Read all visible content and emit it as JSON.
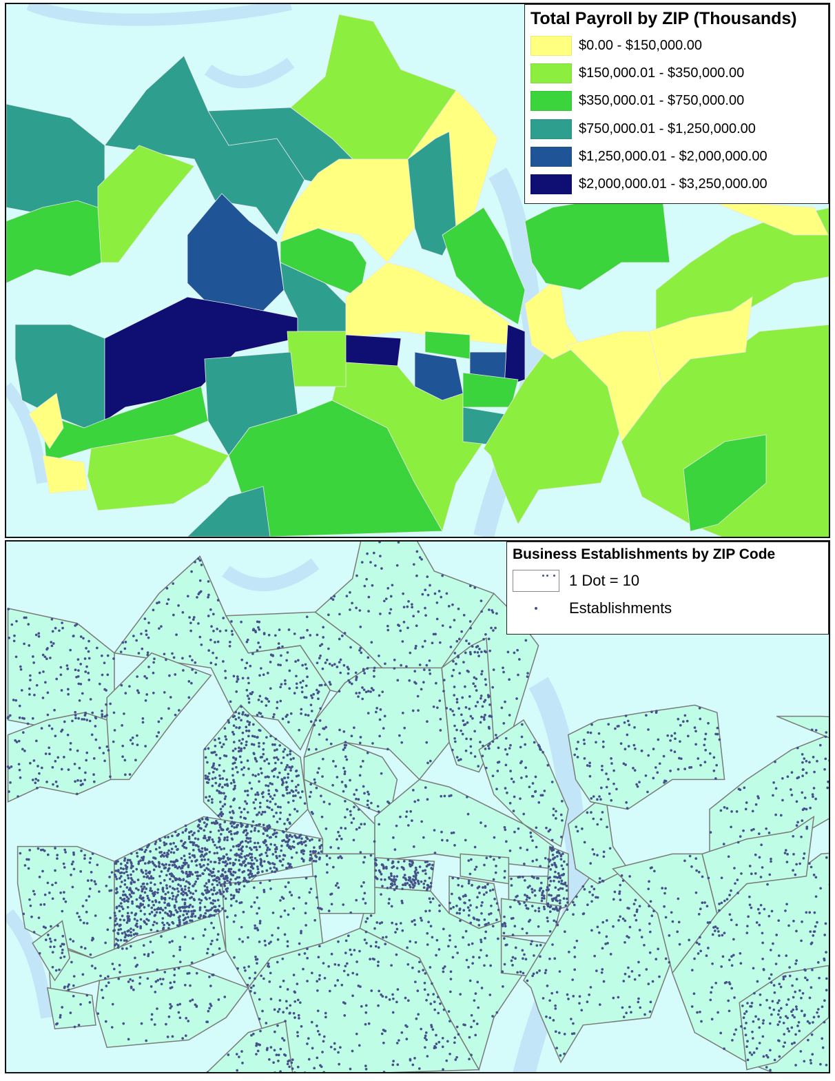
{
  "payroll_map": {
    "legend_title": "Total Payroll by ZIP (Thousands)",
    "classes": [
      {
        "label": "$0.00 - $150,000.00",
        "color": "#ffff80"
      },
      {
        "label": "$150,000.01 - $350,000.00",
        "color": "#8cee3f"
      },
      {
        "label": "$350,000.01 - $750,000.00",
        "color": "#3cd43c"
      },
      {
        "label": "$750,000.01 - $1,250,000.00",
        "color": "#2e9e8e"
      },
      {
        "label": "$1,250,000.01 - $2,000,000.00",
        "color": "#1f5596"
      },
      {
        "label": "$2,000,000.01 - $3,250,000.00",
        "color": "#0e0e73"
      }
    ],
    "water_color": "#d6fbfb",
    "river_color": "#c2e6f8"
  },
  "establishments_map": {
    "legend_title": "Business Establishments by ZIP Code",
    "dot_value_label": "1 Dot = 10",
    "dot_series_label": "Establishments",
    "dot_color": "#46508a",
    "land_color": "#c0fde6",
    "boundary_color": "#7a7a7a"
  }
}
